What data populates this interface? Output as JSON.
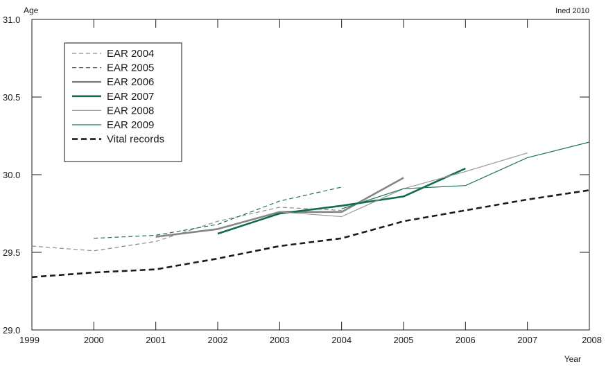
{
  "chart_data": {
    "type": "line",
    "ylabel": "Age",
    "xlabel": "Year",
    "credit": "Ined 2010",
    "xlim": [
      1999,
      2008
    ],
    "ylim": [
      29.0,
      31.0
    ],
    "x_ticks": [
      "1999",
      "2000",
      "2001",
      "2002",
      "2003",
      "2004",
      "2005",
      "2006",
      "2007",
      "2008"
    ],
    "y_ticks": [
      "29.0",
      "29.5",
      "30.0",
      "30.5",
      "31.0"
    ],
    "y_tick_values": [
      29.0,
      29.5,
      30.0,
      30.5,
      31.0
    ],
    "x_tick_values": [
      1999,
      2000,
      2001,
      2002,
      2003,
      2004,
      2005,
      2006,
      2007,
      2008
    ],
    "grid": false,
    "legend_position": "top-left",
    "series": [
      {
        "name": "EAR 2004",
        "color": "#8c8c8c",
        "style": "dashed",
        "weight": "thin",
        "points": [
          [
            1999,
            29.54
          ],
          [
            2000,
            29.51
          ],
          [
            2001,
            29.57
          ],
          [
            2002,
            29.7
          ],
          [
            2003,
            29.79
          ],
          [
            2004,
            29.77
          ]
        ]
      },
      {
        "name": "EAR 2005",
        "color": "#1b6e50",
        "style": "dashed",
        "weight": "thin",
        "points": [
          [
            2000,
            29.59
          ],
          [
            2001,
            29.61
          ],
          [
            2002,
            29.68
          ],
          [
            2003,
            29.83
          ],
          [
            2004,
            29.92
          ]
        ]
      },
      {
        "name": "EAR 2006",
        "color": "#858585",
        "style": "solid",
        "weight": "thick",
        "points": [
          [
            2001,
            29.6
          ],
          [
            2002,
            29.65
          ],
          [
            2003,
            29.76
          ],
          [
            2004,
            29.76
          ],
          [
            2005,
            29.98
          ]
        ]
      },
      {
        "name": "EAR 2007",
        "color": "#0f6b4a",
        "style": "solid",
        "weight": "thick",
        "points": [
          [
            2002,
            29.62
          ],
          [
            2003,
            29.75
          ],
          [
            2004,
            29.8
          ],
          [
            2005,
            29.86
          ],
          [
            2006,
            30.04
          ]
        ]
      },
      {
        "name": "EAR 2008",
        "color": "#9a9a9a",
        "style": "solid",
        "weight": "thin",
        "points": [
          [
            2003,
            29.76
          ],
          [
            2004,
            29.73
          ],
          [
            2005,
            29.91
          ],
          [
            2006,
            30.02
          ],
          [
            2007,
            30.14
          ]
        ]
      },
      {
        "name": "EAR 2009",
        "color": "#1f7355",
        "style": "solid",
        "weight": "thin",
        "points": [
          [
            2004,
            29.78
          ],
          [
            2005,
            29.91
          ],
          [
            2006,
            29.93
          ],
          [
            2007,
            30.11
          ],
          [
            2008,
            30.21
          ]
        ]
      },
      {
        "name": "Vital records",
        "color": "#1a1a1a",
        "style": "dashed",
        "weight": "thick",
        "points": [
          [
            1999,
            29.34
          ],
          [
            2000,
            29.37
          ],
          [
            2001,
            29.39
          ],
          [
            2002,
            29.46
          ],
          [
            2003,
            29.54
          ],
          [
            2004,
            29.59
          ],
          [
            2005,
            29.7
          ],
          [
            2006,
            29.77
          ],
          [
            2007,
            29.84
          ],
          [
            2008,
            29.9
          ]
        ]
      }
    ]
  }
}
